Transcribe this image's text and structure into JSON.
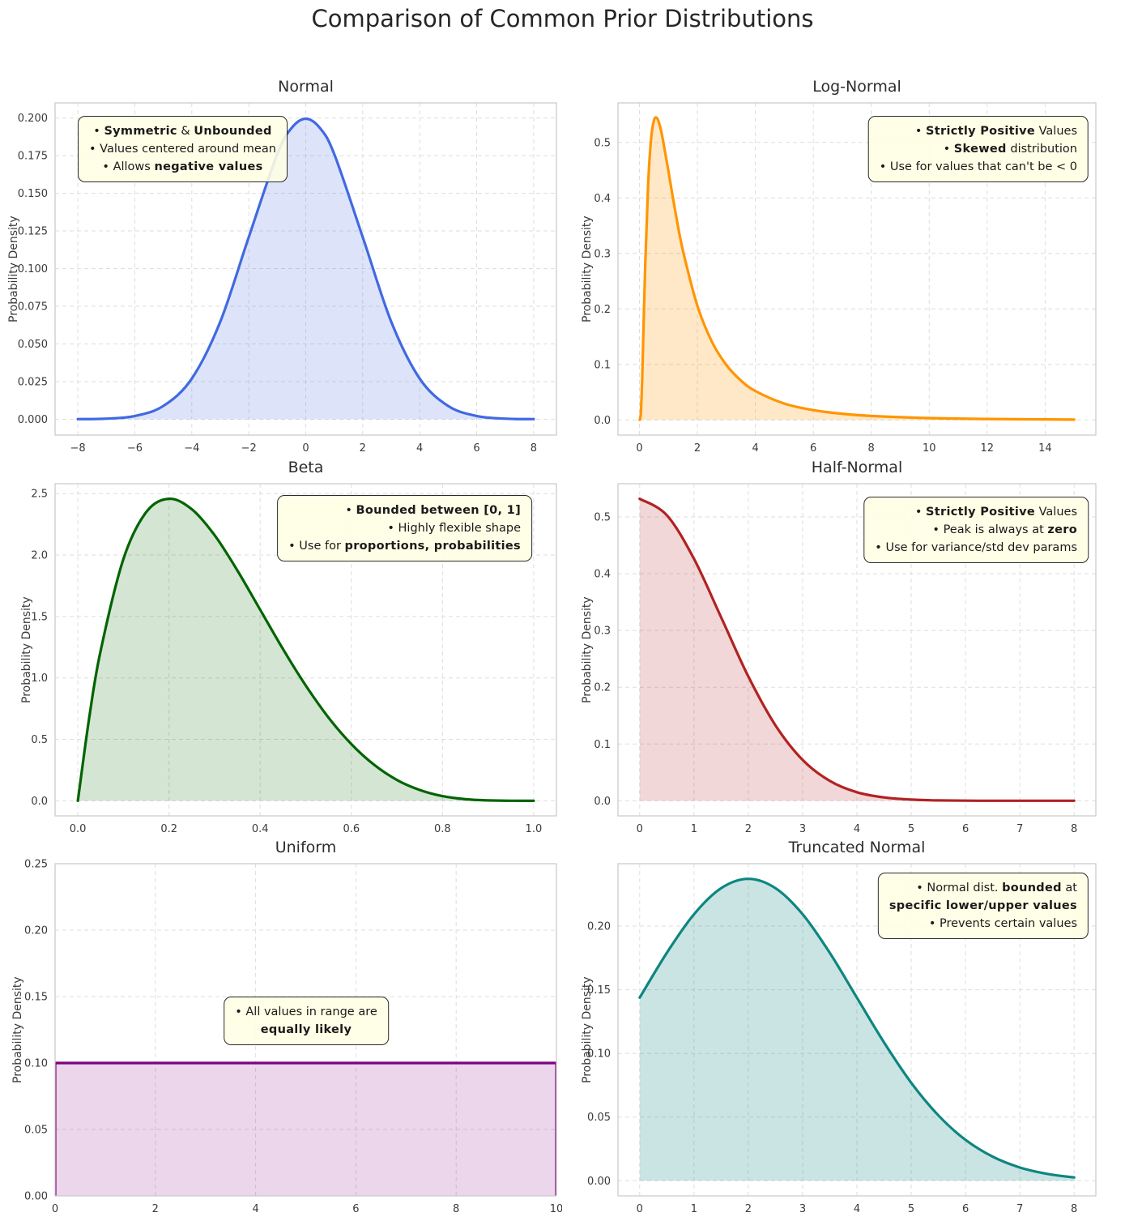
{
  "figure": {
    "title": "Comparison of Common Prior Distributions"
  },
  "chart_data": [
    {
      "id": "normal",
      "type": "area",
      "title": "Normal",
      "ylabel": "Probability Density",
      "color": "#4169E1",
      "fill_color": "rgba(65,105,225,0.18)",
      "grid": true,
      "xlim": [
        -8.8,
        8.8
      ],
      "ylim": [
        -0.0105,
        0.21
      ],
      "xticks": {
        "values": [
          -8,
          -6,
          -4,
          -2,
          0,
          2,
          4,
          6,
          8
        ],
        "labels": [
          "−8",
          "−6",
          "−4",
          "−2",
          "0",
          "2",
          "4",
          "6",
          "8"
        ]
      },
      "yticks": {
        "values": [
          0,
          0.025,
          0.05,
          0.075,
          0.1,
          0.125,
          0.15,
          0.175,
          0.2
        ],
        "labels": [
          "0.000",
          "0.025",
          "0.050",
          "0.075",
          "0.100",
          "0.125",
          "0.150",
          "0.175",
          "0.200"
        ]
      },
      "x": [
        -8,
        -7,
        -6,
        -5,
        -4,
        -3,
        -2,
        -1,
        -0.5,
        0,
        0.5,
        1,
        2,
        3,
        4,
        5,
        6,
        7,
        8
      ],
      "y": [
        0.0001,
        0.0004,
        0.0022,
        0.0088,
        0.027,
        0.0648,
        0.121,
        0.176,
        0.1933,
        0.1995,
        0.1933,
        0.176,
        0.121,
        0.0648,
        0.027,
        0.0088,
        0.0022,
        0.0004,
        0.0001
      ],
      "annotation": {
        "align": "center",
        "anchor": "tl",
        "x": 0.045,
        "y": 0.038,
        "lines": [
          [
            {
              "t": "• ",
              "b": false
            },
            {
              "t": "Symmetric",
              "b": true
            },
            {
              "t": " & ",
              "b": false
            },
            {
              "t": "Unbounded",
              "b": true
            }
          ],
          [
            {
              "t": "• Values centered around mean",
              "b": false
            }
          ],
          [
            {
              "t": "• Allows ",
              "b": false
            },
            {
              "t": "negative values",
              "b": true
            }
          ]
        ]
      }
    },
    {
      "id": "lognormal",
      "type": "area",
      "title": "Log-Normal",
      "ylabel": "Probability Density",
      "color": "#FF9500",
      "fill_color": "rgba(255,150,0,0.22)",
      "grid": true,
      "xlim": [
        -0.74,
        15.75
      ],
      "ylim": [
        -0.0272,
        0.5712
      ],
      "xticks": {
        "values": [
          0,
          2,
          4,
          6,
          8,
          10,
          12,
          14
        ],
        "labels": [
          "0",
          "2",
          "4",
          "6",
          "8",
          "10",
          "12",
          "14"
        ]
      },
      "yticks": {
        "values": [
          0,
          0.1,
          0.2,
          0.3,
          0.4,
          0.5
        ],
        "labels": [
          "0.0",
          "0.1",
          "0.2",
          "0.3",
          "0.4",
          "0.5"
        ]
      },
      "x": [
        0.01,
        0.05,
        0.1,
        0.2,
        0.3,
        0.4,
        0.5,
        0.6,
        0.7,
        0.8,
        1.0,
        1.25,
        1.5,
        2,
        2.5,
        3,
        3.5,
        4,
        5,
        6,
        7,
        8,
        10,
        12,
        15
      ],
      "y": [
        0.0002,
        0.0141,
        0.0843,
        0.2777,
        0.4232,
        0.5048,
        0.5396,
        0.5443,
        0.5311,
        0.5077,
        0.4482,
        0.3722,
        0.3056,
        0.2058,
        0.1411,
        0.0991,
        0.0712,
        0.0522,
        0.0296,
        0.0177,
        0.0112,
        0.0073,
        0.0034,
        0.0018,
        0.0007
      ],
      "annotation": {
        "align": "right",
        "anchor": "tr",
        "x": 0.985,
        "y": 0.038,
        "lines": [
          [
            {
              "t": "• ",
              "b": false
            },
            {
              "t": "Strictly Positive",
              "b": true
            },
            {
              "t": " Values",
              "b": false
            }
          ],
          [
            {
              "t": "• ",
              "b": false
            },
            {
              "t": "Skewed",
              "b": true
            },
            {
              "t": " distribution",
              "b": false
            }
          ],
          [
            {
              "t": "• Use for values that can't be < 0",
              "b": false
            }
          ]
        ]
      }
    },
    {
      "id": "beta",
      "type": "area",
      "title": "Beta",
      "ylabel": "Probability Density",
      "color": "#006400",
      "fill_color": "rgba(0,100,0,0.17)",
      "grid": true,
      "xlim": [
        -0.05,
        1.05
      ],
      "ylim": [
        -0.1229,
        2.5805
      ],
      "xticks": {
        "values": [
          0,
          0.2,
          0.4,
          0.6,
          0.8,
          1.0
        ],
        "labels": [
          "0.0",
          "0.2",
          "0.4",
          "0.6",
          "0.8",
          "1.0"
        ]
      },
      "yticks": {
        "values": [
          0,
          0.5,
          1,
          1.5,
          2,
          2.5
        ],
        "labels": [
          "0.0",
          "0.5",
          "1.0",
          "1.5",
          "2.0",
          "2.5"
        ]
      },
      "x": [
        0,
        0.025,
        0.05,
        0.1,
        0.15,
        0.2,
        0.25,
        0.3,
        0.35,
        0.4,
        0.45,
        0.5,
        0.55,
        0.6,
        0.65,
        0.7,
        0.75,
        0.8,
        0.85,
        0.9,
        0.95,
        1.0
      ],
      "y": [
        0,
        0.678,
        1.222,
        1.968,
        2.349,
        2.458,
        2.373,
        2.161,
        1.874,
        1.555,
        1.235,
        0.938,
        0.677,
        0.461,
        0.293,
        0.17,
        0.088,
        0.038,
        0.013,
        0.003,
        0.0002,
        0
      ],
      "annotation": {
        "align": "right",
        "anchor": "tr",
        "x": 0.952,
        "y": 0.034,
        "lines": [
          [
            {
              "t": "• ",
              "b": false
            },
            {
              "t": "Bounded between [0, 1]",
              "b": true
            }
          ],
          [
            {
              "t": "• Highly flexible shape",
              "b": false
            }
          ],
          [
            {
              "t": "• Use for ",
              "b": false
            },
            {
              "t": "proportions, probabilities",
              "b": true
            }
          ]
        ]
      }
    },
    {
      "id": "halfnormal",
      "type": "area",
      "title": "Half-Normal",
      "ylabel": "Probability Density",
      "color": "#B22222",
      "fill_color": "rgba(178,34,34,0.18)",
      "grid": true,
      "xlim": [
        -0.4,
        8.4
      ],
      "ylim": [
        -0.0266,
        0.5585
      ],
      "xticks": {
        "values": [
          0,
          1,
          2,
          3,
          4,
          5,
          6,
          7,
          8
        ],
        "labels": [
          "0",
          "1",
          "2",
          "3",
          "4",
          "5",
          "6",
          "7",
          "8"
        ]
      },
      "yticks": {
        "values": [
          0,
          0.1,
          0.2,
          0.3,
          0.4,
          0.5
        ],
        "labels": [
          "0.0",
          "0.1",
          "0.2",
          "0.3",
          "0.4",
          "0.5"
        ]
      },
      "x": [
        0,
        0.5,
        1,
        1.5,
        2,
        2.5,
        3,
        3.5,
        4,
        4.5,
        5,
        5.5,
        6,
        6.5,
        7,
        7.5,
        8
      ],
      "y": [
        0.532,
        0.503,
        0.426,
        0.323,
        0.219,
        0.133,
        0.072,
        0.035,
        0.015,
        0.0059,
        0.0021,
        0.0007,
        0.0002,
        0.0001,
        0.0001,
        0.0001,
        0.0001
      ],
      "annotation": {
        "align": "right",
        "anchor": "tr",
        "x": 0.985,
        "y": 0.038,
        "lines": [
          [
            {
              "t": "• ",
              "b": false
            },
            {
              "t": "Strictly Positive",
              "b": true
            },
            {
              "t": " Values",
              "b": false
            }
          ],
          [
            {
              "t": "• Peak is always at ",
              "b": false
            },
            {
              "t": "zero",
              "b": true
            }
          ],
          [
            {
              "t": "• Use for variance/std dev params",
              "b": false
            }
          ]
        ]
      }
    },
    {
      "id": "uniform",
      "type": "area",
      "title": "Uniform",
      "ylabel": "Probability Density",
      "color": "#800080",
      "fill_color": "rgba(128,0,128,0.16)",
      "grid": true,
      "smooth": false,
      "xlim": [
        0,
        10
      ],
      "ylim": [
        0,
        0.25
      ],
      "xticks": {
        "values": [
          0,
          2,
          4,
          6,
          8,
          10
        ],
        "labels": [
          "0",
          "2",
          "4",
          "6",
          "8",
          "10"
        ]
      },
      "yticks": {
        "values": [
          0,
          0.05,
          0.1,
          0.15,
          0.2,
          0.25
        ],
        "labels": [
          "0.00",
          "0.05",
          "0.10",
          "0.15",
          "0.20",
          "0.25"
        ]
      },
      "x": [
        0,
        0,
        10,
        10
      ],
      "y": [
        0,
        0.1,
        0.1,
        0
      ],
      "annotation": {
        "align": "center",
        "anchor": "tc",
        "x": 0.5,
        "y": 0.4,
        "lines": [
          [
            {
              "t": "• All values in range are",
              "b": false
            }
          ],
          [
            {
              "t": "equally likely",
              "b": true
            }
          ]
        ]
      }
    },
    {
      "id": "truncnormal",
      "type": "area",
      "title": "Truncated Normal",
      "ylabel": "Probability Density",
      "color": "#0D8680",
      "fill_color": "rgba(13,134,128,0.22)",
      "grid": true,
      "xlim": [
        -0.4,
        8.4
      ],
      "ylim": [
        -0.0119,
        0.249
      ],
      "xticks": {
        "values": [
          0,
          1,
          2,
          3,
          4,
          5,
          6,
          7,
          8
        ],
        "labels": [
          "0",
          "1",
          "2",
          "3",
          "4",
          "5",
          "6",
          "7",
          "8"
        ]
      },
      "yticks": {
        "values": [
          0,
          0.05,
          0.1,
          0.15,
          0.2
        ],
        "labels": [
          "0.00",
          "0.05",
          "0.10",
          "0.15",
          "0.20"
        ]
      },
      "x": [
        0,
        0.5,
        1,
        1.5,
        2,
        2.5,
        3,
        3.5,
        4,
        4.5,
        5,
        5.5,
        6,
        6.5,
        7,
        7.5,
        8
      ],
      "y": [
        0.1438,
        0.179,
        0.2093,
        0.2298,
        0.2371,
        0.2298,
        0.2093,
        0.179,
        0.1438,
        0.1086,
        0.077,
        0.0513,
        0.0321,
        0.0189,
        0.0104,
        0.0054,
        0.0026
      ],
      "annotation": {
        "align": "right",
        "anchor": "tr",
        "x": 0.985,
        "y": 0.028,
        "lines": [
          [
            {
              "t": "• Normal dist. ",
              "b": false
            },
            {
              "t": "bounded",
              "b": true
            },
            {
              "t": " at",
              "b": false
            }
          ],
          [
            {
              "t": "specific lower/upper values",
              "b": true
            }
          ],
          [
            {
              "t": "• Prevents certain values",
              "b": false
            }
          ]
        ]
      }
    }
  ]
}
